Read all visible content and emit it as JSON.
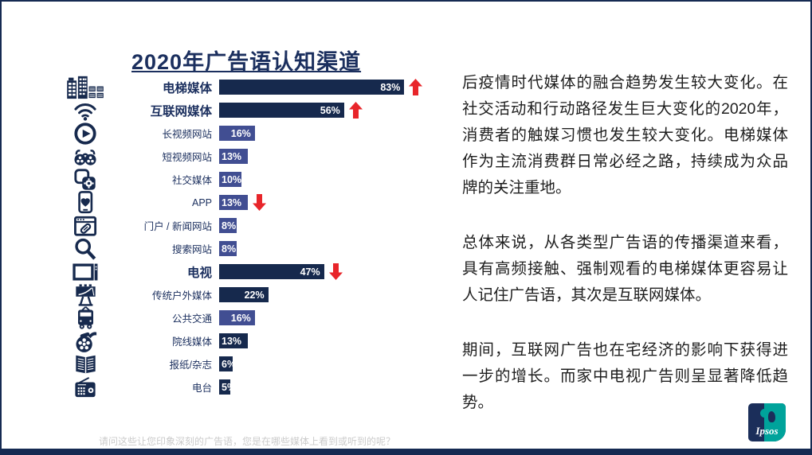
{
  "title": "2020年广告语认知渠道",
  "colors": {
    "navy": "#1B2F5E",
    "dark_bar": "#16294D",
    "light_bar": "#414E92",
    "arrow_red": "#E8252A",
    "logo_teal": "#00A39B",
    "footer_strip": "#152A52"
  },
  "chart_data": {
    "type": "bar",
    "orientation": "horizontal",
    "title": "2020年广告语认知渠道",
    "unit": "%",
    "xlim": [
      0,
      100
    ],
    "rows": [
      {
        "label": "电梯媒体",
        "value": 83,
        "emphasis": true,
        "tone": "dark",
        "trend": "up",
        "icon": "buildings-icon"
      },
      {
        "label": "互联网媒体",
        "value": 56,
        "emphasis": true,
        "tone": "dark",
        "trend": "up",
        "icon": "wifi-icon"
      },
      {
        "label": "长视频网站",
        "value": 16,
        "emphasis": false,
        "tone": "light",
        "trend": null,
        "icon": "play-video-icon"
      },
      {
        "label": "短视频网站",
        "value": 13,
        "emphasis": false,
        "tone": "light",
        "trend": null,
        "icon": "binoculars-icon"
      },
      {
        "label": "社交媒体",
        "value": 10,
        "emphasis": false,
        "tone": "light",
        "trend": null,
        "icon": "social-media-icon"
      },
      {
        "label": "APP",
        "value": 13,
        "emphasis": false,
        "tone": "light",
        "trend": "down",
        "icon": "phone-app-icon"
      },
      {
        "label": "门户 / 新闻网站",
        "value": 8,
        "emphasis": false,
        "tone": "light",
        "trend": null,
        "icon": "news-portal-icon"
      },
      {
        "label": "搜索网站",
        "value": 8,
        "emphasis": false,
        "tone": "light",
        "trend": null,
        "icon": "search-icon"
      },
      {
        "label": "电视",
        "value": 47,
        "emphasis": true,
        "tone": "dark",
        "trend": "down",
        "icon": "tv-icon"
      },
      {
        "label": "传统户外媒体",
        "value": 22,
        "emphasis": false,
        "tone": "dark",
        "trend": null,
        "icon": "billboard-icon"
      },
      {
        "label": "公共交通",
        "value": 16,
        "emphasis": false,
        "tone": "light",
        "trend": null,
        "icon": "bus-icon"
      },
      {
        "label": "院线媒体",
        "value": 13,
        "emphasis": false,
        "tone": "dark",
        "trend": null,
        "icon": "film-reel-icon"
      },
      {
        "label": "报纸/杂志",
        "value": 6,
        "emphasis": false,
        "tone": "dark",
        "trend": null,
        "icon": "newspaper-icon"
      },
      {
        "label": "电台",
        "value": 5,
        "emphasis": false,
        "tone": "dark",
        "trend": null,
        "icon": "radio-icon"
      }
    ]
  },
  "commentary": {
    "paragraphs": [
      "后疫情时代媒体的融合趋势发生较大变化。在社交活动和行动路径发生巨大变化的2020年，消费者的触媒习惯也发生较大变化。电梯媒体作为主流消费群日常必经之路，持续成为众品牌的关注重地。",
      "总体来说，从各类型广告语的传播渠道来看，具有高频接触、强制观看的电梯媒体更容易让人记住广告语，其次是互联网媒体。",
      "期间，互联网广告也在宅经济的影响下获得进一步的增长。而家中电视广告则呈显著降低趋势。"
    ]
  },
  "footnote": "请问这些让您印象深刻的广告语，您是在哪些媒体上看到或听到的呢？",
  "logo": {
    "text": "Ipsos"
  }
}
